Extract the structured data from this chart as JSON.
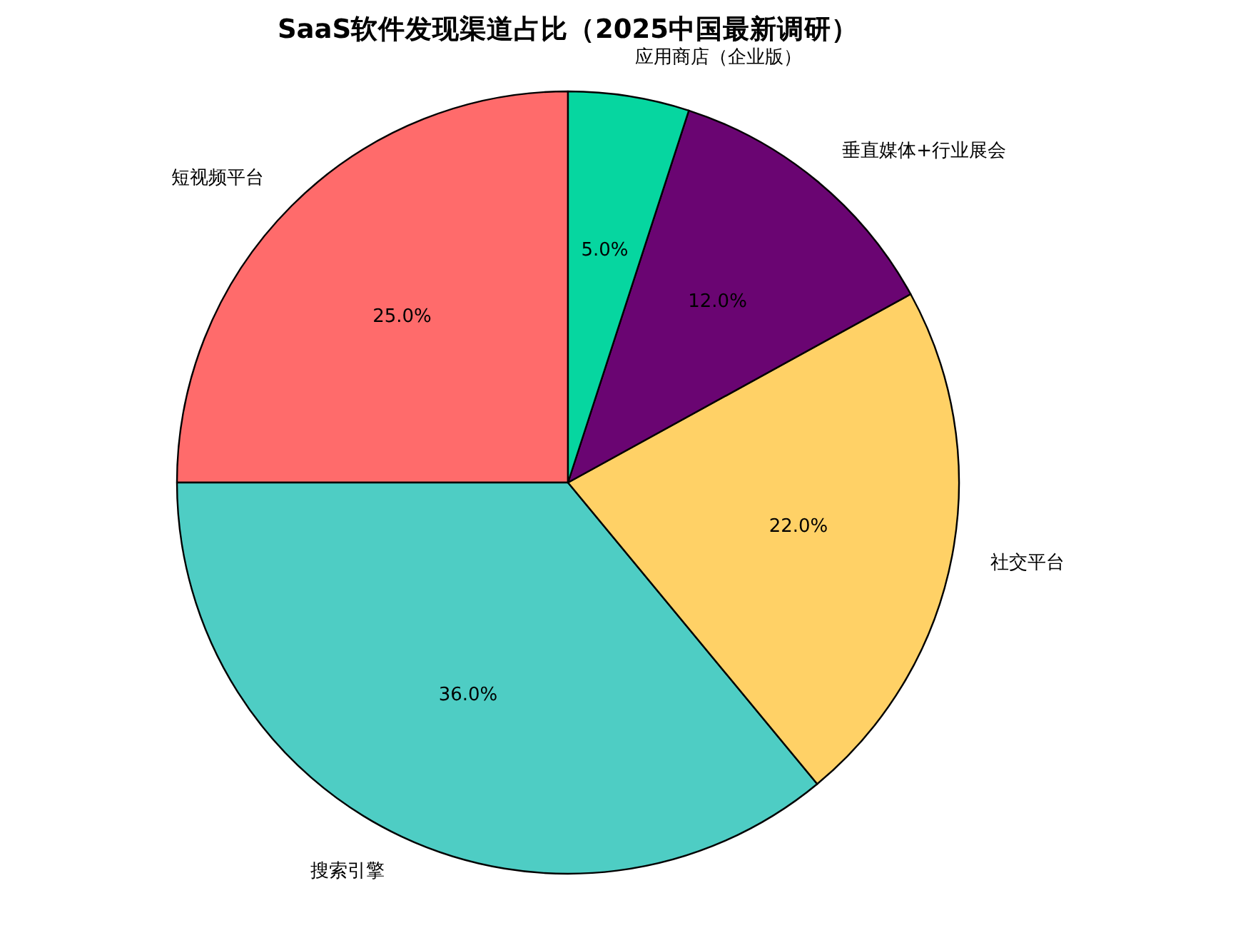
{
  "chart_data": {
    "type": "pie",
    "title": "SaaS软件发现渠道占比（2025中国最新调研）",
    "categories": [
      "短视频平台",
      "搜索引擎",
      "社交平台",
      "垂直媒体+行业展会",
      "应用商店（企业版）"
    ],
    "values": [
      25,
      36,
      22,
      12,
      5
    ],
    "colors": [
      "#ff6b6b",
      "#4ecdc4",
      "#ffd166",
      "#6a0572",
      "#06d6a0"
    ],
    "value_labels": [
      "25.0%",
      "36.0%",
      "22.0%",
      "12.0%",
      "5.0%"
    ]
  }
}
